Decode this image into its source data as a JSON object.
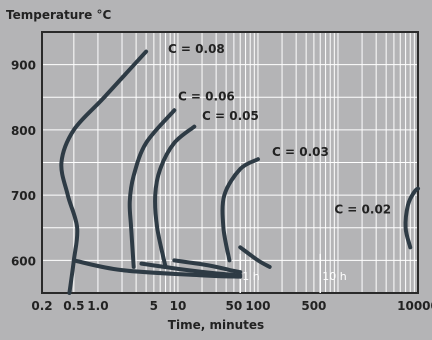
{
  "chart_data": {
    "type": "line",
    "ylabel": "Temperature °C",
    "xlabel": "Time, minutes",
    "x_scale": "log",
    "xlim": [
      0.2,
      10000
    ],
    "ylim": [
      550,
      950
    ],
    "x_ticks": [
      {
        "label": "0.2",
        "value": 0.2
      },
      {
        "label": "0.5",
        "value": 0.5
      },
      {
        "label": "1.0",
        "value": 1
      },
      {
        "label": "5",
        "value": 5
      },
      {
        "label": "10",
        "value": 10
      },
      {
        "label": "50",
        "value": 50
      },
      {
        "label": "100",
        "value": 100
      },
      {
        "label": "500",
        "value": 500
      },
      {
        "label": "10000",
        "value": 10000
      }
    ],
    "y_ticks": [
      600,
      700,
      800,
      900
    ],
    "grid": true,
    "markers": [
      {
        "label": "1 h",
        "x": 60
      },
      {
        "label": "10 h",
        "x": 600
      }
    ],
    "series": [
      {
        "name": "C = 0.08",
        "points": [
          [
            0.44,
            550
          ],
          [
            0.5,
            600
          ],
          [
            0.55,
            650
          ],
          [
            0.42,
            700
          ],
          [
            0.35,
            750
          ],
          [
            0.5,
            800
          ],
          [
            1.2,
            850
          ],
          [
            4.0,
            920
          ]
        ],
        "tail": [
          [
            0.5,
            600
          ],
          [
            2,
            585
          ],
          [
            20,
            577
          ],
          [
            60,
            575
          ]
        ]
      },
      {
        "name": "C = 0.06",
        "points": [
          [
            2.8,
            590
          ],
          [
            2.6,
            650
          ],
          [
            2.5,
            690
          ],
          [
            2.8,
            730
          ],
          [
            4,
            780
          ],
          [
            9,
            830
          ]
        ],
        "tail": [
          [
            3.5,
            595
          ],
          [
            10,
            587
          ],
          [
            30,
            580
          ],
          [
            60,
            577
          ]
        ]
      },
      {
        "name": "C = 0.05",
        "points": [
          [
            7,
            590
          ],
          [
            5.5,
            650
          ],
          [
            5.2,
            700
          ],
          [
            6,
            740
          ],
          [
            9,
            780
          ],
          [
            16,
            805
          ]
        ],
        "tail": [
          [
            9,
            600
          ],
          [
            25,
            592
          ],
          [
            45,
            585
          ],
          [
            60,
            582
          ]
        ]
      },
      {
        "name": "C = 0.03",
        "points": [
          [
            44,
            600
          ],
          [
            37,
            650
          ],
          [
            38,
            700
          ],
          [
            60,
            740
          ],
          [
            100,
            755
          ]
        ],
        "tail": [
          [
            60,
            620
          ],
          [
            100,
            600
          ],
          [
            140,
            590
          ]
        ]
      },
      {
        "name": "C = 0.02",
        "points": [
          [
            8000,
            620
          ],
          [
            7000,
            650
          ],
          [
            7500,
            685
          ],
          [
            9000,
            705
          ],
          [
            10000,
            710
          ]
        ],
        "tail": []
      }
    ],
    "series_labels": [
      {
        "text": "C = 0.08",
        "x": 7.5,
        "y": 918
      },
      {
        "text": "C = 0.06",
        "x": 10,
        "y": 845
      },
      {
        "text": "C = 0.05",
        "x": 20,
        "y": 815
      },
      {
        "text": "C = 0.03",
        "x": 150,
        "y": 760
      },
      {
        "text": "C = 0.02",
        "x": 900,
        "y": 672
      }
    ],
    "colors": {
      "curve": "#2e3b45",
      "grid": "#ffffff",
      "frame": "#2a2a2a",
      "plot_bg": "#b4b4b6"
    }
  }
}
